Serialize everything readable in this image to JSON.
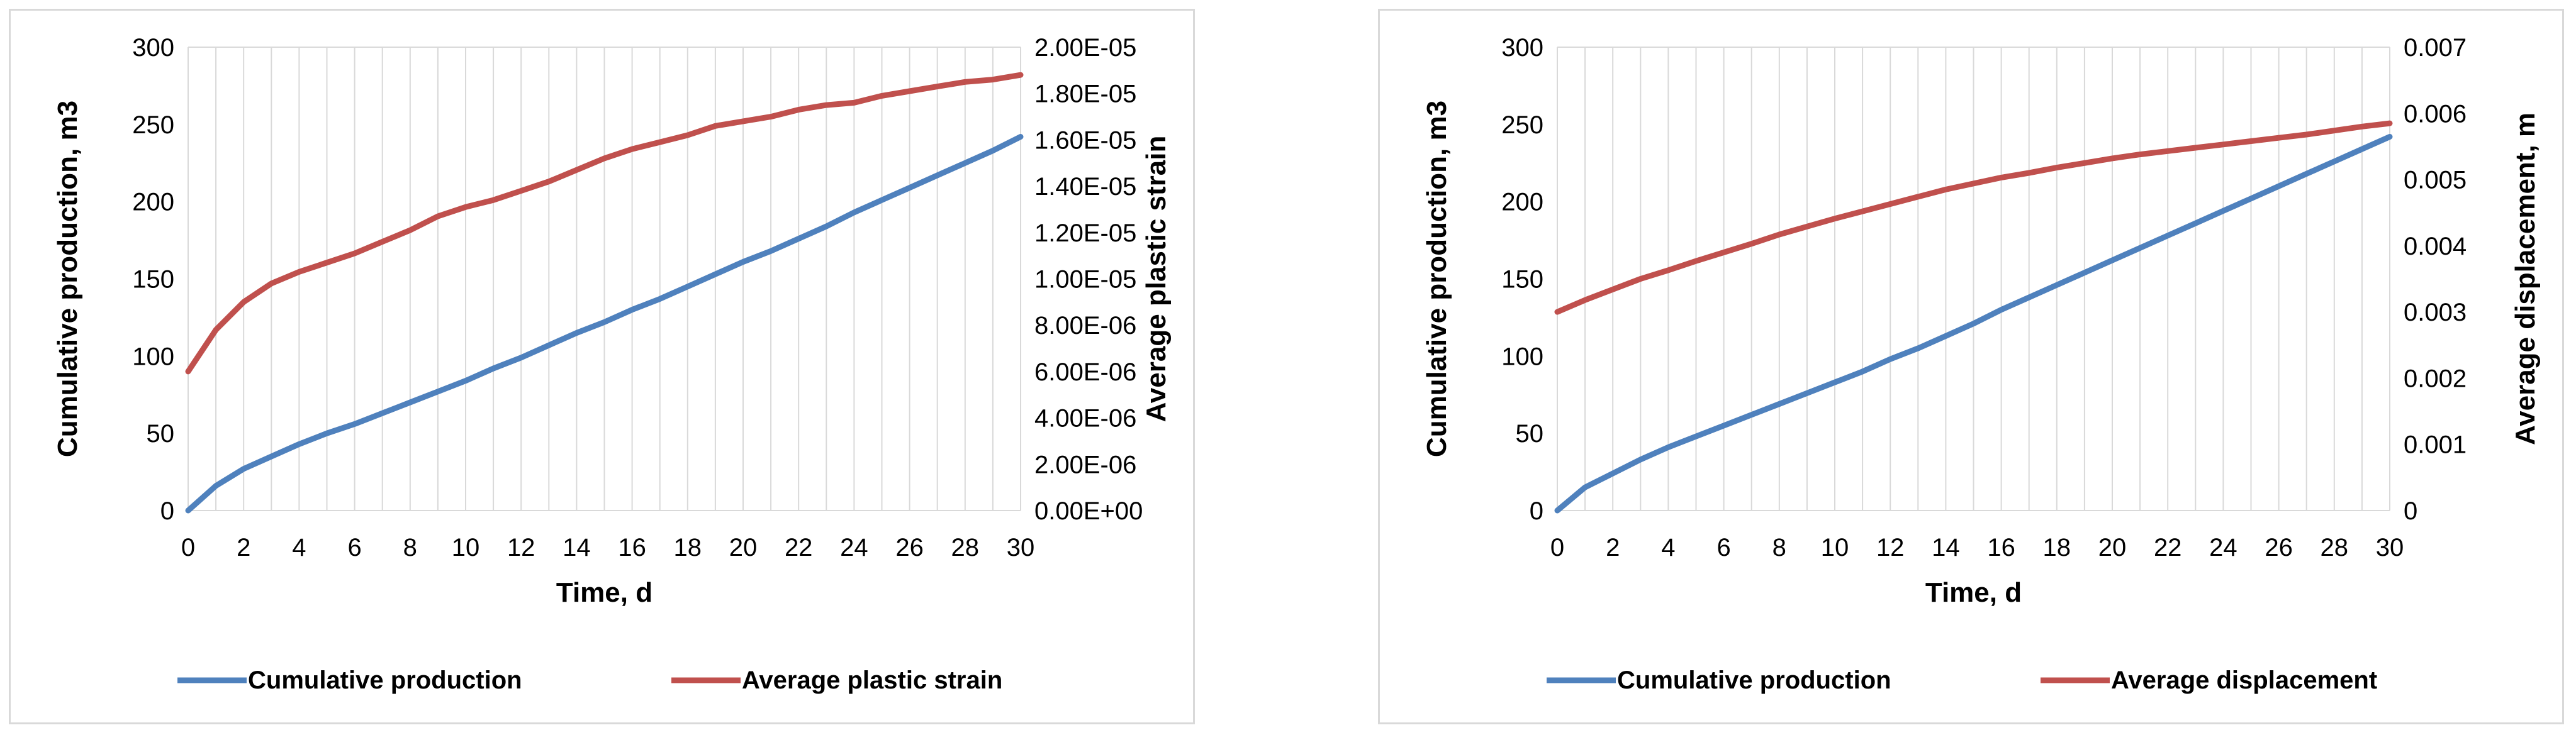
{
  "chart_data": [
    {
      "type": "line",
      "x": [
        0,
        1,
        2,
        3,
        4,
        5,
        6,
        7,
        8,
        9,
        10,
        11,
        12,
        13,
        14,
        15,
        16,
        17,
        18,
        19,
        20,
        21,
        22,
        23,
        24,
        25,
        26,
        27,
        28,
        29,
        30
      ],
      "x_ticks": [
        "0",
        "2",
        "4",
        "6",
        "8",
        "10",
        "12",
        "14",
        "16",
        "18",
        "20",
        "22",
        "24",
        "26",
        "28",
        "30"
      ],
      "xlim": [
        0,
        30
      ],
      "xlabel": "Time, d",
      "ylabel": "Cumulative production, m3",
      "ylim": [
        0,
        300
      ],
      "y_ticks": [
        "0",
        "50",
        "100",
        "150",
        "200",
        "250",
        "300"
      ],
      "y2label": "Average plastic strain",
      "y2lim": [
        0,
        2e-05
      ],
      "y2_ticks": [
        "0.00E+00",
        "2.00E-06",
        "4.00E-06",
        "6.00E-06",
        "8.00E-06",
        "1.00E-05",
        "1.20E-05",
        "1.40E-05",
        "1.60E-05",
        "1.80E-05",
        "2.00E-05"
      ],
      "grid": "vertical",
      "legend_position": "bottom",
      "series": [
        {
          "name": "Cumulative production",
          "axis": "left",
          "color": "#4f81bd",
          "values": [
            0,
            16,
            27,
            35,
            43,
            50,
            56,
            63,
            70,
            77,
            84,
            92,
            99,
            107,
            115,
            122,
            130,
            137,
            145,
            153,
            161,
            168,
            176,
            184,
            193,
            201,
            209,
            217,
            225,
            233,
            242
          ]
        },
        {
          "name": "Average plastic strain",
          "axis": "right",
          "color": "#c0504d",
          "values": [
            6e-06,
            7.8e-06,
            9e-06,
            9.8e-06,
            1.03e-05,
            1.07e-05,
            1.11e-05,
            1.16e-05,
            1.21e-05,
            1.27e-05,
            1.31e-05,
            1.34e-05,
            1.38e-05,
            1.42e-05,
            1.47e-05,
            1.52e-05,
            1.56e-05,
            1.59e-05,
            1.62e-05,
            1.66e-05,
            1.68e-05,
            1.7e-05,
            1.73e-05,
            1.75e-05,
            1.76e-05,
            1.79e-05,
            1.81e-05,
            1.83e-05,
            1.85e-05,
            1.86e-05,
            1.88e-05
          ]
        }
      ]
    },
    {
      "type": "line",
      "x": [
        0,
        1,
        2,
        3,
        4,
        5,
        6,
        7,
        8,
        9,
        10,
        11,
        12,
        13,
        14,
        15,
        16,
        17,
        18,
        19,
        20,
        21,
        22,
        23,
        24,
        25,
        26,
        27,
        28,
        29,
        30
      ],
      "x_ticks": [
        "0",
        "2",
        "4",
        "6",
        "8",
        "10",
        "12",
        "14",
        "16",
        "18",
        "20",
        "22",
        "24",
        "26",
        "28",
        "30"
      ],
      "xlim": [
        0,
        30
      ],
      "xlabel": "Time, d",
      "ylabel": "Cumulative production, m3",
      "ylim": [
        0,
        300
      ],
      "y_ticks": [
        "0",
        "50",
        "100",
        "150",
        "200",
        "250",
        "300"
      ],
      "y2label": "Average displacement, m",
      "y2lim": [
        0,
        0.007
      ],
      "y2_ticks": [
        "0",
        "0.001",
        "0.002",
        "0.003",
        "0.004",
        "0.005",
        "0.006",
        "0.007"
      ],
      "grid": "vertical",
      "legend_position": "bottom",
      "series": [
        {
          "name": "Cumulative production",
          "axis": "left",
          "color": "#4f81bd",
          "values": [
            0,
            15,
            24,
            33,
            41,
            48,
            55,
            62,
            69,
            76,
            83,
            90,
            98,
            105,
            113,
            121,
            130,
            138,
            146,
            154,
            162,
            170,
            178,
            186,
            194,
            202,
            210,
            218,
            226,
            234,
            242
          ]
        },
        {
          "name": "Average displacement",
          "axis": "right",
          "color": "#c0504d",
          "values": [
            0.003,
            0.00318,
            0.00334,
            0.0035,
            0.00363,
            0.00377,
            0.0039,
            0.00403,
            0.00417,
            0.00429,
            0.00441,
            0.00452,
            0.00463,
            0.00474,
            0.00485,
            0.00494,
            0.00503,
            0.0051,
            0.00518,
            0.00525,
            0.00532,
            0.00538,
            0.00543,
            0.00548,
            0.00553,
            0.00558,
            0.00563,
            0.00568,
            0.00574,
            0.0058,
            0.00585
          ]
        }
      ]
    }
  ]
}
